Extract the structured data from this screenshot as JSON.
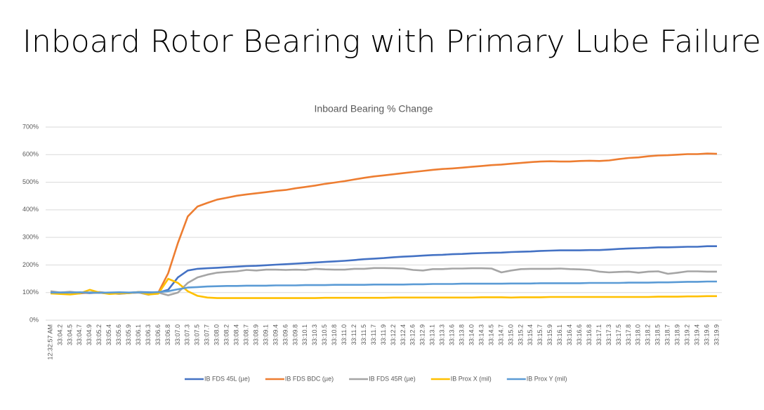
{
  "page": {
    "title": "Inboard Rotor Bearing with Primary Lube Failure"
  },
  "chart_data": {
    "type": "line",
    "title": "Inboard Bearing % Change",
    "categories": [
      "12:32:57 AM",
      "33:04.2",
      "33:04.5",
      "33:04.7",
      "33:04.9",
      "33:05.2",
      "33:05.4",
      "33:05.6",
      "33:05.9",
      "33:06.1",
      "33:06.3",
      "33:06.6",
      "33:06.8",
      "33:07.0",
      "33:07.3",
      "33:07.5",
      "33:07.7",
      "33:08.0",
      "33:08.2",
      "33:08.4",
      "33:08.7",
      "33:08.9",
      "33:09.1",
      "33:09.4",
      "33:09.6",
      "33:09.8",
      "33:10.1",
      "33:10.3",
      "33:10.5",
      "33:10.8",
      "33:11.0",
      "33:11.2",
      "33:11.5",
      "33:11.7",
      "33:11.9",
      "33:12.2",
      "33:12.4",
      "33:12.6",
      "33:12.9",
      "33:13.1",
      "33:13.3",
      "33:13.6",
      "33:13.8",
      "33:14.0",
      "33:14.3",
      "33:14.5",
      "33:14.7",
      "33:15.0",
      "33:15.2",
      "33:15.4",
      "33:15.7",
      "33:15.9",
      "33:16.1",
      "33:16.4",
      "33:16.6",
      "33:16.8",
      "33:17.1",
      "33:17.3",
      "33:17.5",
      "33:17.8",
      "33:18.0",
      "33:18.2",
      "33:18.5",
      "33:18.7",
      "33:18.9",
      "33:19.2",
      "33:19.4",
      "33:19.6",
      "33:19.9"
    ],
    "ylim": [
      0,
      700
    ],
    "yticks": [
      {
        "value": 0,
        "label": "0%"
      },
      {
        "value": 100,
        "label": "100%"
      },
      {
        "value": 200,
        "label": "200%"
      },
      {
        "value": 300,
        "label": "300%"
      },
      {
        "value": 400,
        "label": "400%"
      },
      {
        "value": 500,
        "label": "500%"
      },
      {
        "value": 600,
        "label": "600%"
      },
      {
        "value": 700,
        "label": "700%"
      }
    ],
    "grid": true,
    "legend": "bottom",
    "series": [
      {
        "name": "IB FDS 45L (µe)",
        "color": "#4472c4",
        "values": [
          100,
          100,
          101,
          99,
          98,
          100,
          99,
          97,
          99,
          102,
          101,
          100,
          110,
          155,
          180,
          186,
          188,
          190,
          192,
          194,
          196,
          197,
          199,
          201,
          203,
          205,
          207,
          209,
          211,
          213,
          215,
          218,
          221,
          223,
          225,
          228,
          230,
          232,
          234,
          236,
          237,
          239,
          240,
          242,
          243,
          244,
          245,
          247,
          248,
          249,
          251,
          252,
          253,
          253,
          253,
          254,
          254,
          256,
          258,
          260,
          261,
          262,
          264,
          264,
          265,
          266,
          266,
          268,
          268
        ]
      },
      {
        "name": "IB FDS BDC (µe)",
        "color": "#ed7d31",
        "values": [
          100,
          98,
          100,
          97,
          100,
          99,
          97,
          96,
          98,
          100,
          99,
          100,
          170,
          280,
          376,
          412,
          425,
          437,
          444,
          451,
          456,
          460,
          464,
          469,
          472,
          478,
          483,
          488,
          494,
          499,
          504,
          510,
          516,
          521,
          525,
          529,
          533,
          537,
          541,
          545,
          548,
          550,
          553,
          556,
          559,
          562,
          564,
          567,
          570,
          573,
          575,
          576,
          575,
          575,
          577,
          578,
          577,
          579,
          584,
          588,
          590,
          594,
          597,
          598,
          600,
          602,
          602,
          604,
          603
        ]
      },
      {
        "name": "IB FDS 45R (µe)",
        "color": "#a5a5a5",
        "values": [
          105,
          100,
          103,
          99,
          100,
          102,
          98,
          95,
          98,
          100,
          92,
          100,
          90,
          100,
          135,
          155,
          165,
          172,
          175,
          177,
          182,
          180,
          183,
          183,
          182,
          183,
          182,
          186,
          184,
          183,
          183,
          186,
          186,
          189,
          189,
          188,
          187,
          182,
          180,
          185,
          185,
          187,
          187,
          188,
          188,
          187,
          173,
          180,
          185,
          186,
          186,
          186,
          187,
          185,
          184,
          182,
          176,
          173,
          175,
          176,
          172,
          176,
          177,
          168,
          172,
          177,
          177,
          176,
          176
        ]
      },
      {
        "name": "IB Prox X (mil)",
        "color": "#ffc000",
        "values": [
          97,
          95,
          93,
          97,
          110,
          100,
          95,
          97,
          98,
          102,
          93,
          96,
          150,
          135,
          105,
          88,
          82,
          80,
          80,
          80,
          80,
          80,
          80,
          80,
          80,
          80,
          80,
          80,
          81,
          81,
          81,
          81,
          81,
          81,
          81,
          82,
          82,
          82,
          82,
          82,
          82,
          82,
          82,
          82,
          83,
          83,
          83,
          82,
          83,
          83,
          83,
          84,
          84,
          84,
          84,
          84,
          84,
          84,
          84,
          84,
          84,
          84,
          85,
          85,
          85,
          86,
          86,
          87,
          87
        ]
      },
      {
        "name": "IB Prox Y (mil)",
        "color": "#5b9bd5",
        "values": [
          100,
          100,
          100,
          101,
          100,
          99,
          100,
          101,
          100,
          101,
          100,
          102,
          105,
          112,
          118,
          120,
          122,
          123,
          124,
          124,
          125,
          125,
          125,
          126,
          126,
          126,
          127,
          127,
          127,
          128,
          128,
          128,
          128,
          129,
          129,
          129,
          129,
          130,
          130,
          131,
          131,
          131,
          132,
          132,
          132,
          132,
          132,
          133,
          133,
          133,
          134,
          134,
          134,
          134,
          134,
          135,
          135,
          135,
          135,
          136,
          136,
          136,
          137,
          137,
          138,
          139,
          139,
          140,
          140
        ]
      }
    ]
  }
}
